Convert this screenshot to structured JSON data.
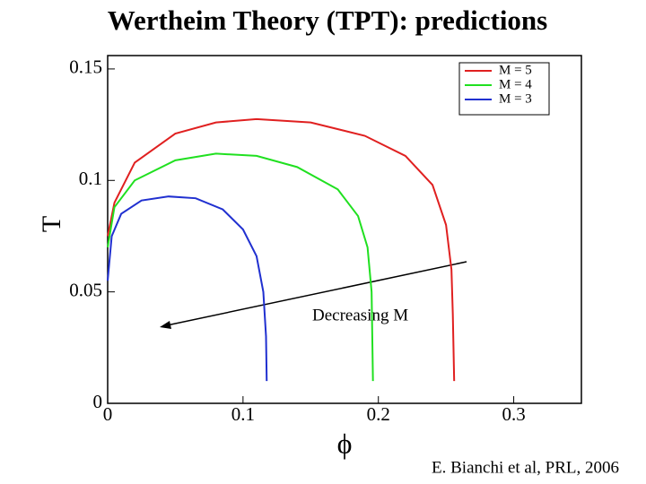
{
  "chart_data": {
    "type": "line",
    "title": "Wertheim Theory (TPT): predictions",
    "x_label": "ϕ",
    "y_label": "T",
    "annotation": "Decreasing M",
    "citation": "E. Bianchi et al, PRL, 2006",
    "xlim": [
      0,
      0.35
    ],
    "ylim": [
      0,
      0.156
    ],
    "xticks": [
      0,
      0.1,
      0.2,
      0.3
    ],
    "yticks": [
      0,
      0.05,
      0.1,
      0.15
    ],
    "legend": "upper right",
    "series": [
      {
        "name": "M = 5",
        "color": "#e02020",
        "x": [
          0,
          0.005,
          0.02,
          0.05,
          0.08,
          0.11,
          0.15,
          0.19,
          0.22,
          0.24,
          0.25,
          0.254,
          0.255,
          0.256
        ],
        "values": [
          0.075,
          0.09,
          0.108,
          0.121,
          0.126,
          0.1275,
          0.126,
          0.12,
          0.111,
          0.098,
          0.08,
          0.06,
          0.04,
          0.01
        ]
      },
      {
        "name": "M = 4",
        "color": "#20e020",
        "x": [
          0,
          0.005,
          0.02,
          0.05,
          0.08,
          0.11,
          0.14,
          0.17,
          0.185,
          0.192,
          0.195,
          0.196
        ],
        "values": [
          0.07,
          0.088,
          0.1,
          0.109,
          0.112,
          0.111,
          0.106,
          0.096,
          0.084,
          0.07,
          0.05,
          0.01
        ]
      },
      {
        "name": "M = 3",
        "color": "#2030d0",
        "x": [
          0,
          0.003,
          0.01,
          0.025,
          0.045,
          0.065,
          0.085,
          0.1,
          0.11,
          0.115,
          0.117,
          0.1175
        ],
        "values": [
          0.055,
          0.075,
          0.085,
          0.091,
          0.0928,
          0.092,
          0.087,
          0.078,
          0.066,
          0.05,
          0.03,
          0.01
        ]
      }
    ]
  }
}
